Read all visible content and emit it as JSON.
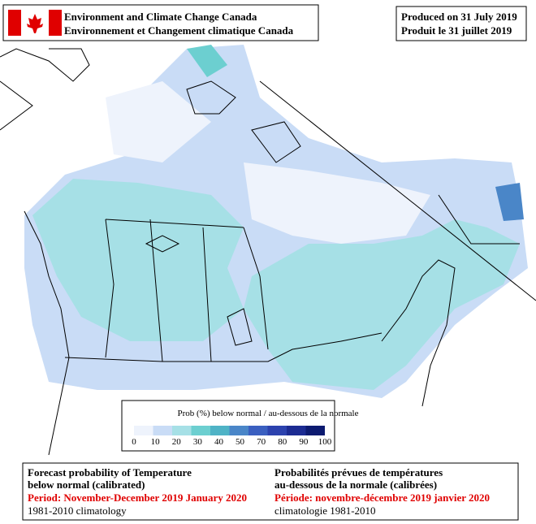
{
  "header": {
    "agency_en": "Environment and Climate Change Canada",
    "agency_fr": "Environnement et Changement climatique Canada",
    "produced_en": "Produced on 31 July 2019",
    "produced_fr": "Produit le 31 juillet 2019"
  },
  "legend": {
    "title": "Prob (%) below normal / au-dessous de la normale",
    "ticks": [
      0,
      10,
      20,
      30,
      40,
      50,
      70,
      80,
      90,
      100
    ],
    "colors": [
      "#eef3fc",
      "#c9dcf6",
      "#a6e0e6",
      "#6ccfd0",
      "#4fb3c6",
      "#4a86c8",
      "#3a5fc0",
      "#2c42ae",
      "#1c2b92",
      "#0c1a70"
    ]
  },
  "footer": {
    "en": {
      "line1": "Forecast probability of Temperature",
      "line2": "below normal (calibrated)",
      "period": "Period: November-December 2019 January 2020",
      "climatology": "1981-2010 climatology"
    },
    "fr": {
      "line1": "Probabilités prévues de températures",
      "line2": "au-dessous de la normale (calibrées)",
      "period": "Période: novembre-décembre 2019 janvier 2020",
      "climatology": "climatologie 1981-2010"
    }
  }
}
